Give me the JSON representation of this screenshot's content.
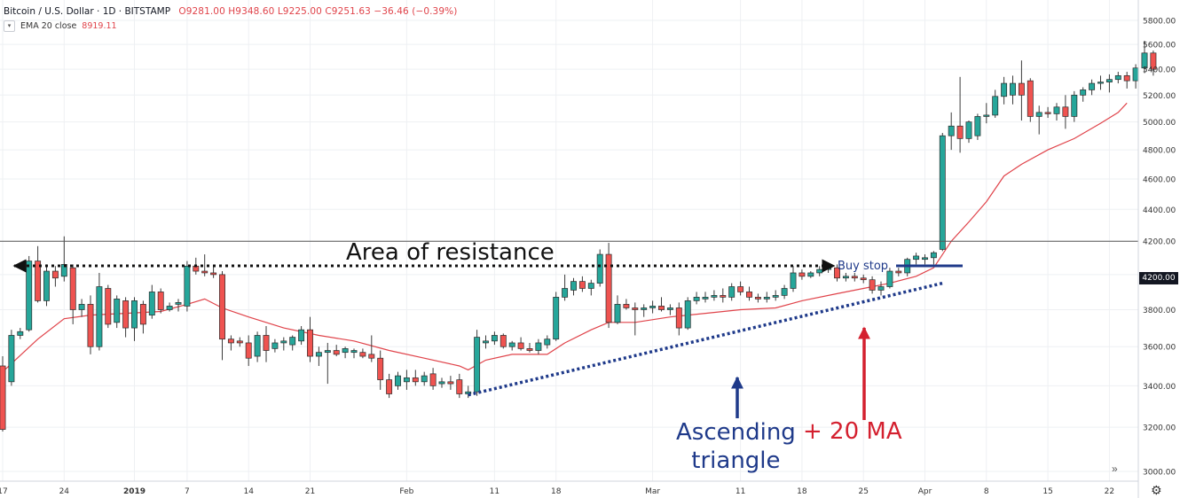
{
  "header": {
    "symbol": "Bitcoin / U.S. Dollar · 1D · BITSTAMP",
    "ohlc": "O9281.00  H9348.60  L9225.00  C9251.63  −36.46 (−0.39%)"
  },
  "indicator": {
    "label": "EMA 20 close",
    "value": "8919.11",
    "toggle_icon": "chevron-down-icon"
  },
  "annotations": {
    "resistance": "Area of  resistance",
    "buy_stop": "Buy stop",
    "ascending_line1": "Ascending",
    "ascending_line2": "triangle",
    "ma": "+ 20 MA"
  },
  "price_label": "4200.00",
  "colors": {
    "up": "#26a69a",
    "down": "#ef5350",
    "ema": "#e0434a",
    "annotation_blue": "#1f3a8a",
    "annotation_red": "#d4202f"
  },
  "chart_data": {
    "type": "candlestick",
    "symbol": "Bitcoin / U.S. Dollar",
    "interval": "1D",
    "exchange": "BITSTAMP",
    "ylim": [
      2930,
      5900
    ],
    "y_scale": "log",
    "y_ticks": [
      3000,
      3200,
      3400,
      3600,
      3800,
      4000,
      4200,
      4400,
      4600,
      4800,
      5000,
      5200,
      5400,
      5600,
      5800
    ],
    "y_tick_labels": [
      "3000.00",
      "3200.00",
      "3400.00",
      "3600.00",
      "3800.00",
      "4000.00",
      "4200.00",
      "4400.00",
      "4600.00",
      "4800.00",
      "5000.00",
      "5200.00",
      "5400.00",
      "5600.00",
      "5800.00"
    ],
    "x_ticks": [
      {
        "label": "17",
        "index": 0
      },
      {
        "label": "24",
        "index": 7
      },
      {
        "label": "2019",
        "index": 15
      },
      {
        "label": "7",
        "index": 21
      },
      {
        "label": "14",
        "index": 28
      },
      {
        "label": "21",
        "index": 35
      },
      {
        "label": "Feb",
        "index": 46
      },
      {
        "label": "11",
        "index": 56
      },
      {
        "label": "18",
        "index": 63
      },
      {
        "label": "Mar",
        "index": 74
      },
      {
        "label": "11",
        "index": 84
      },
      {
        "label": "18",
        "index": 91
      },
      {
        "label": "25",
        "index": 98
      },
      {
        "label": "Apr",
        "index": 105
      },
      {
        "label": "8",
        "index": 112
      },
      {
        "label": "15",
        "index": 119
      },
      {
        "label": "22",
        "index": 126
      }
    ],
    "candles": [
      {
        "o": 3500,
        "h": 3550,
        "l": 3180,
        "c": 3190
      },
      {
        "o": 3420,
        "h": 3690,
        "l": 3400,
        "c": 3660
      },
      {
        "o": 3660,
        "h": 3700,
        "l": 3640,
        "c": 3680
      },
      {
        "o": 3690,
        "h": 4110,
        "l": 3680,
        "c": 4080
      },
      {
        "o": 4080,
        "h": 4170,
        "l": 3840,
        "c": 3850
      },
      {
        "o": 3850,
        "h": 4060,
        "l": 3820,
        "c": 4020
      },
      {
        "o": 4020,
        "h": 4050,
        "l": 3930,
        "c": 3980
      },
      {
        "o": 3990,
        "h": 4230,
        "l": 3960,
        "c": 4060
      },
      {
        "o": 4040,
        "h": 4060,
        "l": 3720,
        "c": 3800
      },
      {
        "o": 3800,
        "h": 3860,
        "l": 3760,
        "c": 3830
      },
      {
        "o": 3830,
        "h": 3880,
        "l": 3560,
        "c": 3600
      },
      {
        "o": 3600,
        "h": 4010,
        "l": 3580,
        "c": 3930
      },
      {
        "o": 3920,
        "h": 3940,
        "l": 3700,
        "c": 3720
      },
      {
        "o": 3730,
        "h": 3880,
        "l": 3700,
        "c": 3860
      },
      {
        "o": 3850,
        "h": 3870,
        "l": 3650,
        "c": 3700
      },
      {
        "o": 3700,
        "h": 3870,
        "l": 3630,
        "c": 3850
      },
      {
        "o": 3830,
        "h": 3850,
        "l": 3670,
        "c": 3720
      },
      {
        "o": 3770,
        "h": 3940,
        "l": 3750,
        "c": 3900
      },
      {
        "o": 3900,
        "h": 3920,
        "l": 3780,
        "c": 3800
      },
      {
        "o": 3800,
        "h": 3840,
        "l": 3790,
        "c": 3820
      },
      {
        "o": 3830,
        "h": 3860,
        "l": 3790,
        "c": 3840
      },
      {
        "o": 3820,
        "h": 4080,
        "l": 3790,
        "c": 4050
      },
      {
        "o": 4050,
        "h": 4100,
        "l": 4000,
        "c": 4020
      },
      {
        "o": 4020,
        "h": 4120,
        "l": 3990,
        "c": 4010
      },
      {
        "o": 4010,
        "h": 4050,
        "l": 3980,
        "c": 4000
      },
      {
        "o": 4000,
        "h": 4020,
        "l": 3530,
        "c": 3640
      },
      {
        "o": 3640,
        "h": 3660,
        "l": 3580,
        "c": 3620
      },
      {
        "o": 3630,
        "h": 3650,
        "l": 3600,
        "c": 3620
      },
      {
        "o": 3620,
        "h": 3660,
        "l": 3500,
        "c": 3540
      },
      {
        "o": 3550,
        "h": 3680,
        "l": 3520,
        "c": 3660
      },
      {
        "o": 3660,
        "h": 3710,
        "l": 3520,
        "c": 3580
      },
      {
        "o": 3590,
        "h": 3640,
        "l": 3570,
        "c": 3620
      },
      {
        "o": 3620,
        "h": 3650,
        "l": 3580,
        "c": 3630
      },
      {
        "o": 3610,
        "h": 3660,
        "l": 3580,
        "c": 3650
      },
      {
        "o": 3630,
        "h": 3710,
        "l": 3610,
        "c": 3690
      },
      {
        "o": 3690,
        "h": 3760,
        "l": 3520,
        "c": 3550
      },
      {
        "o": 3550,
        "h": 3600,
        "l": 3500,
        "c": 3570
      },
      {
        "o": 3570,
        "h": 3620,
        "l": 3410,
        "c": 3580
      },
      {
        "o": 3580,
        "h": 3610,
        "l": 3550,
        "c": 3560
      },
      {
        "o": 3570,
        "h": 3600,
        "l": 3540,
        "c": 3590
      },
      {
        "o": 3570,
        "h": 3590,
        "l": 3540,
        "c": 3580
      },
      {
        "o": 3570,
        "h": 3590,
        "l": 3540,
        "c": 3550
      },
      {
        "o": 3560,
        "h": 3660,
        "l": 3520,
        "c": 3540
      },
      {
        "o": 3540,
        "h": 3580,
        "l": 3380,
        "c": 3430
      },
      {
        "o": 3430,
        "h": 3460,
        "l": 3340,
        "c": 3360
      },
      {
        "o": 3400,
        "h": 3470,
        "l": 3380,
        "c": 3450
      },
      {
        "o": 3420,
        "h": 3480,
        "l": 3380,
        "c": 3440
      },
      {
        "o": 3440,
        "h": 3480,
        "l": 3400,
        "c": 3420
      },
      {
        "o": 3420,
        "h": 3470,
        "l": 3400,
        "c": 3450
      },
      {
        "o": 3460,
        "h": 3490,
        "l": 3380,
        "c": 3400
      },
      {
        "o": 3410,
        "h": 3440,
        "l": 3390,
        "c": 3420
      },
      {
        "o": 3420,
        "h": 3450,
        "l": 3380,
        "c": 3410
      },
      {
        "o": 3430,
        "h": 3460,
        "l": 3340,
        "c": 3360
      },
      {
        "o": 3360,
        "h": 3400,
        "l": 3340,
        "c": 3370
      },
      {
        "o": 3370,
        "h": 3690,
        "l": 3350,
        "c": 3650
      },
      {
        "o": 3620,
        "h": 3660,
        "l": 3590,
        "c": 3630
      },
      {
        "o": 3630,
        "h": 3680,
        "l": 3610,
        "c": 3660
      },
      {
        "o": 3660,
        "h": 3670,
        "l": 3590,
        "c": 3600
      },
      {
        "o": 3600,
        "h": 3630,
        "l": 3580,
        "c": 3620
      },
      {
        "o": 3620,
        "h": 3650,
        "l": 3580,
        "c": 3590
      },
      {
        "o": 3590,
        "h": 3620,
        "l": 3570,
        "c": 3580
      },
      {
        "o": 3580,
        "h": 3640,
        "l": 3560,
        "c": 3620
      },
      {
        "o": 3610,
        "h": 3660,
        "l": 3590,
        "c": 3640
      },
      {
        "o": 3640,
        "h": 3900,
        "l": 3630,
        "c": 3870
      },
      {
        "o": 3870,
        "h": 4000,
        "l": 3850,
        "c": 3920
      },
      {
        "o": 3910,
        "h": 3980,
        "l": 3880,
        "c": 3960
      },
      {
        "o": 3960,
        "h": 3990,
        "l": 3900,
        "c": 3920
      },
      {
        "o": 3920,
        "h": 3970,
        "l": 3880,
        "c": 3950
      },
      {
        "o": 3950,
        "h": 4150,
        "l": 3930,
        "c": 4120
      },
      {
        "o": 4120,
        "h": 4190,
        "l": 3700,
        "c": 3730
      },
      {
        "o": 3730,
        "h": 3880,
        "l": 3720,
        "c": 3830
      },
      {
        "o": 3830,
        "h": 3860,
        "l": 3800,
        "c": 3810
      },
      {
        "o": 3810,
        "h": 3840,
        "l": 3660,
        "c": 3800
      },
      {
        "o": 3800,
        "h": 3830,
        "l": 3760,
        "c": 3810
      },
      {
        "o": 3810,
        "h": 3850,
        "l": 3780,
        "c": 3820
      },
      {
        "o": 3820,
        "h": 3870,
        "l": 3790,
        "c": 3800
      },
      {
        "o": 3800,
        "h": 3830,
        "l": 3770,
        "c": 3810
      },
      {
        "o": 3810,
        "h": 3840,
        "l": 3660,
        "c": 3700
      },
      {
        "o": 3700,
        "h": 3870,
        "l": 3690,
        "c": 3850
      },
      {
        "o": 3850,
        "h": 3900,
        "l": 3830,
        "c": 3870
      },
      {
        "o": 3860,
        "h": 3900,
        "l": 3840,
        "c": 3870
      },
      {
        "o": 3870,
        "h": 3910,
        "l": 3850,
        "c": 3880
      },
      {
        "o": 3880,
        "h": 3920,
        "l": 3840,
        "c": 3870
      },
      {
        "o": 3870,
        "h": 3950,
        "l": 3850,
        "c": 3930
      },
      {
        "o": 3930,
        "h": 3960,
        "l": 3880,
        "c": 3900
      },
      {
        "o": 3900,
        "h": 3930,
        "l": 3850,
        "c": 3870
      },
      {
        "o": 3870,
        "h": 3890,
        "l": 3840,
        "c": 3860
      },
      {
        "o": 3860,
        "h": 3900,
        "l": 3840,
        "c": 3870
      },
      {
        "o": 3870,
        "h": 3910,
        "l": 3850,
        "c": 3880
      },
      {
        "o": 3880,
        "h": 3940,
        "l": 3860,
        "c": 3920
      },
      {
        "o": 3920,
        "h": 4050,
        "l": 3900,
        "c": 4010
      },
      {
        "o": 4010,
        "h": 4030,
        "l": 3970,
        "c": 3990
      },
      {
        "o": 3990,
        "h": 4020,
        "l": 3980,
        "c": 4010
      },
      {
        "o": 4010,
        "h": 4050,
        "l": 3990,
        "c": 4030
      },
      {
        "o": 4030,
        "h": 4060,
        "l": 4010,
        "c": 4040
      },
      {
        "o": 4040,
        "h": 4060,
        "l": 3960,
        "c": 3980
      },
      {
        "o": 3980,
        "h": 4010,
        "l": 3960,
        "c": 3990
      },
      {
        "o": 3990,
        "h": 4010,
        "l": 3960,
        "c": 3980
      },
      {
        "o": 3980,
        "h": 4000,
        "l": 3950,
        "c": 3970
      },
      {
        "o": 3970,
        "h": 3990,
        "l": 3890,
        "c": 3910
      },
      {
        "o": 3910,
        "h": 3960,
        "l": 3880,
        "c": 3930
      },
      {
        "o": 3930,
        "h": 4040,
        "l": 3920,
        "c": 4020
      },
      {
        "o": 4020,
        "h": 4040,
        "l": 3990,
        "c": 4010
      },
      {
        "o": 4010,
        "h": 4100,
        "l": 3990,
        "c": 4090
      },
      {
        "o": 4090,
        "h": 4130,
        "l": 4060,
        "c": 4110
      },
      {
        "o": 4090,
        "h": 4120,
        "l": 4060,
        "c": 4100
      },
      {
        "o": 4100,
        "h": 4140,
        "l": 4060,
        "c": 4130
      },
      {
        "o": 4150,
        "h": 4920,
        "l": 4140,
        "c": 4900
      },
      {
        "o": 4900,
        "h": 5070,
        "l": 4800,
        "c": 4970
      },
      {
        "o": 4970,
        "h": 5340,
        "l": 4780,
        "c": 4880
      },
      {
        "o": 4880,
        "h": 5010,
        "l": 4850,
        "c": 5000
      },
      {
        "o": 4900,
        "h": 5060,
        "l": 4870,
        "c": 5040
      },
      {
        "o": 5040,
        "h": 5140,
        "l": 4990,
        "c": 5050
      },
      {
        "o": 5050,
        "h": 5240,
        "l": 5030,
        "c": 5190
      },
      {
        "o": 5190,
        "h": 5340,
        "l": 5130,
        "c": 5290
      },
      {
        "o": 5200,
        "h": 5350,
        "l": 5130,
        "c": 5290
      },
      {
        "o": 5290,
        "h": 5470,
        "l": 5010,
        "c": 5200
      },
      {
        "o": 5310,
        "h": 5330,
        "l": 5000,
        "c": 5040
      },
      {
        "o": 5040,
        "h": 5120,
        "l": 4910,
        "c": 5070
      },
      {
        "o": 5070,
        "h": 5110,
        "l": 5030,
        "c": 5060
      },
      {
        "o": 5060,
        "h": 5140,
        "l": 5010,
        "c": 5110
      },
      {
        "o": 5110,
        "h": 5200,
        "l": 4950,
        "c": 5040
      },
      {
        "o": 5040,
        "h": 5230,
        "l": 5000,
        "c": 5200
      },
      {
        "o": 5200,
        "h": 5260,
        "l": 5150,
        "c": 5240
      },
      {
        "o": 5240,
        "h": 5320,
        "l": 5200,
        "c": 5290
      },
      {
        "o": 5290,
        "h": 5350,
        "l": 5240,
        "c": 5300
      },
      {
        "o": 5300,
        "h": 5360,
        "l": 5220,
        "c": 5320
      },
      {
        "o": 5320,
        "h": 5380,
        "l": 5290,
        "c": 5350
      },
      {
        "o": 5350,
        "h": 5380,
        "l": 5250,
        "c": 5310
      },
      {
        "o": 5310,
        "h": 5440,
        "l": 5250,
        "c": 5410
      },
      {
        "o": 5410,
        "h": 5630,
        "l": 5370,
        "c": 5530
      },
      {
        "o": 5530,
        "h": 5550,
        "l": 5350,
        "c": 5400
      }
    ],
    "ema": {
      "name": "EMA 20 close",
      "points": [
        {
          "i": 0,
          "v": 3470
        },
        {
          "i": 4,
          "v": 3640
        },
        {
          "i": 7,
          "v": 3750
        },
        {
          "i": 10,
          "v": 3770
        },
        {
          "i": 14,
          "v": 3780
        },
        {
          "i": 18,
          "v": 3790
        },
        {
          "i": 21,
          "v": 3830
        },
        {
          "i": 23,
          "v": 3860
        },
        {
          "i": 25,
          "v": 3810
        },
        {
          "i": 28,
          "v": 3760
        },
        {
          "i": 32,
          "v": 3700
        },
        {
          "i": 36,
          "v": 3660
        },
        {
          "i": 40,
          "v": 3630
        },
        {
          "i": 44,
          "v": 3580
        },
        {
          "i": 48,
          "v": 3540
        },
        {
          "i": 52,
          "v": 3500
        },
        {
          "i": 53,
          "v": 3480
        },
        {
          "i": 55,
          "v": 3530
        },
        {
          "i": 58,
          "v": 3560
        },
        {
          "i": 62,
          "v": 3560
        },
        {
          "i": 64,
          "v": 3620
        },
        {
          "i": 67,
          "v": 3690
        },
        {
          "i": 69,
          "v": 3730
        },
        {
          "i": 72,
          "v": 3730
        },
        {
          "i": 76,
          "v": 3760
        },
        {
          "i": 80,
          "v": 3780
        },
        {
          "i": 84,
          "v": 3800
        },
        {
          "i": 88,
          "v": 3810
        },
        {
          "i": 91,
          "v": 3850
        },
        {
          "i": 95,
          "v": 3890
        },
        {
          "i": 98,
          "v": 3920
        },
        {
          "i": 101,
          "v": 3950
        },
        {
          "i": 104,
          "v": 3990
        },
        {
          "i": 106,
          "v": 4040
        },
        {
          "i": 108,
          "v": 4200
        },
        {
          "i": 110,
          "v": 4320
        },
        {
          "i": 112,
          "v": 4450
        },
        {
          "i": 114,
          "v": 4620
        },
        {
          "i": 116,
          "v": 4700
        },
        {
          "i": 119,
          "v": 4800
        },
        {
          "i": 122,
          "v": 4880
        },
        {
          "i": 125,
          "v": 4990
        },
        {
          "i": 127,
          "v": 5070
        },
        {
          "i": 128,
          "v": 5140
        }
      ]
    },
    "resistance_level": 4200,
    "trendline": {
      "from": {
        "i": 53,
        "v": 3355
      },
      "to": {
        "i": 107,
        "v": 3950
      }
    },
    "annotations": [
      "Area of  resistance",
      "Buy stop",
      "Ascending triangle",
      "+ 20 MA"
    ]
  }
}
